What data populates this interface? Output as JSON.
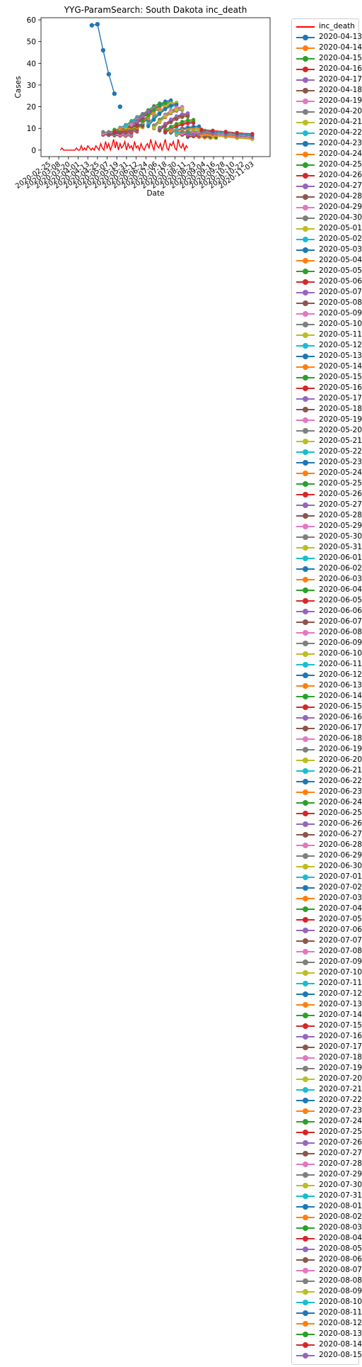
{
  "chart_data": {
    "type": "line",
    "title": "YYG-ParamSearch: South Dakota inc_death",
    "xlabel": "Date",
    "ylabel": "Cases",
    "ylim": [
      -3,
      61
    ],
    "xlim": [
      "2020-02-15",
      "2020-11-25"
    ],
    "grid": false,
    "legend_position": "outside-right",
    "yticks": [
      0,
      10,
      20,
      30,
      40,
      50,
      60
    ],
    "xticks": [
      "2020-02-25",
      "2020-03-08",
      "2020-03-20",
      "2020-04-01",
      "2020-04-13",
      "2020-04-25",
      "2020-05-07",
      "2020-05-19",
      "2020-05-31",
      "2020-06-12",
      "2020-06-24",
      "2020-07-06",
      "2020-07-18",
      "2020-07-30",
      "2020-08-11",
      "2020-08-23",
      "2020-09-04",
      "2020-09-16",
      "2020-09-28",
      "2020-10-10",
      "2020-10-22",
      "2020-11-03"
    ],
    "observed": {
      "name": "inc_death",
      "color": "#ff0000",
      "x": [
        "2020-03-10",
        "2020-03-12",
        "2020-03-14",
        "2020-03-16",
        "2020-03-18",
        "2020-03-20",
        "2020-03-22",
        "2020-03-24",
        "2020-03-26",
        "2020-03-28",
        "2020-03-30",
        "2020-04-01",
        "2020-04-03",
        "2020-04-05",
        "2020-04-07",
        "2020-04-09",
        "2020-04-11",
        "2020-04-13",
        "2020-04-15",
        "2020-04-17",
        "2020-04-19",
        "2020-04-21",
        "2020-04-23",
        "2020-04-25",
        "2020-04-27",
        "2020-04-29",
        "2020-05-01",
        "2020-05-03",
        "2020-05-05",
        "2020-05-07",
        "2020-05-09",
        "2020-05-11",
        "2020-05-13",
        "2020-05-15",
        "2020-05-17",
        "2020-05-19",
        "2020-05-21",
        "2020-05-23",
        "2020-05-25",
        "2020-05-27",
        "2020-05-29",
        "2020-05-31",
        "2020-06-02",
        "2020-06-04",
        "2020-06-06",
        "2020-06-08",
        "2020-06-10",
        "2020-06-12",
        "2020-06-14",
        "2020-06-16",
        "2020-06-18",
        "2020-06-20",
        "2020-06-22",
        "2020-06-24",
        "2020-06-26",
        "2020-06-28",
        "2020-06-30",
        "2020-07-02",
        "2020-07-04",
        "2020-07-06",
        "2020-07-08",
        "2020-07-10",
        "2020-07-12",
        "2020-07-14",
        "2020-07-16",
        "2020-07-18",
        "2020-07-20",
        "2020-07-22",
        "2020-07-24",
        "2020-07-26",
        "2020-07-28",
        "2020-07-30",
        "2020-08-01",
        "2020-08-03",
        "2020-08-05",
        "2020-08-07",
        "2020-08-09",
        "2020-08-11",
        "2020-08-13",
        "2020-08-15"
      ],
      "y": [
        0,
        1,
        0,
        0,
        0,
        0,
        0,
        0,
        0,
        0,
        1,
        0,
        0,
        2,
        0,
        1,
        0,
        2,
        1,
        0,
        1,
        0,
        2,
        1,
        0,
        3,
        1,
        0,
        4,
        1,
        3,
        0,
        2,
        5,
        1,
        4,
        0,
        3,
        1,
        2,
        4,
        0,
        3,
        1,
        2,
        0,
        4,
        1,
        2,
        0,
        3,
        1,
        0,
        2,
        3,
        1,
        5,
        2,
        0,
        4,
        2,
        1,
        3,
        0,
        2,
        5,
        1,
        0,
        3,
        2,
        4,
        1,
        0,
        5,
        2,
        1,
        3,
        0,
        2,
        1
      ]
    },
    "series_colors": [
      "#1f77b4",
      "#ff7f0e",
      "#2ca02c",
      "#d62728",
      "#9467bd",
      "#8c564b",
      "#e377c2",
      "#7f7f7f",
      "#bcbd22",
      "#17becf"
    ],
    "series_names": [
      "2020-04-13",
      "2020-04-14",
      "2020-04-15",
      "2020-04-16",
      "2020-04-17",
      "2020-04-18",
      "2020-04-19",
      "2020-04-20",
      "2020-04-21",
      "2020-04-22",
      "2020-04-23",
      "2020-04-24",
      "2020-04-25",
      "2020-04-26",
      "2020-04-27",
      "2020-04-28",
      "2020-04-29",
      "2020-04-30",
      "2020-05-01",
      "2020-05-02",
      "2020-05-03",
      "2020-05-04",
      "2020-05-05",
      "2020-05-06",
      "2020-05-07",
      "2020-05-08",
      "2020-05-09",
      "2020-05-10",
      "2020-05-11",
      "2020-05-12",
      "2020-05-13",
      "2020-05-14",
      "2020-05-15",
      "2020-05-16",
      "2020-05-17",
      "2020-05-18",
      "2020-05-19",
      "2020-05-20",
      "2020-05-21",
      "2020-05-22",
      "2020-05-23",
      "2020-05-24",
      "2020-05-25",
      "2020-05-26",
      "2020-05-27",
      "2020-05-28",
      "2020-05-29",
      "2020-05-30",
      "2020-05-31",
      "2020-06-01",
      "2020-06-02",
      "2020-06-03",
      "2020-06-04",
      "2020-06-05",
      "2020-06-06",
      "2020-06-07",
      "2020-06-08",
      "2020-06-09",
      "2020-06-10",
      "2020-06-11",
      "2020-06-12",
      "2020-06-13",
      "2020-06-14",
      "2020-06-15",
      "2020-06-16",
      "2020-06-17",
      "2020-06-18",
      "2020-06-19",
      "2020-06-20",
      "2020-06-21",
      "2020-06-22",
      "2020-06-23",
      "2020-06-24",
      "2020-06-25",
      "2020-06-26",
      "2020-06-27",
      "2020-06-28",
      "2020-06-29",
      "2020-06-30",
      "2020-07-01",
      "2020-07-02",
      "2020-07-03",
      "2020-07-04",
      "2020-07-05",
      "2020-07-06",
      "2020-07-07",
      "2020-07-08",
      "2020-07-09",
      "2020-07-10",
      "2020-07-11",
      "2020-07-12",
      "2020-07-13",
      "2020-07-14",
      "2020-07-15",
      "2020-07-16",
      "2020-07-17",
      "2020-07-18",
      "2020-07-19",
      "2020-07-20",
      "2020-07-21",
      "2020-07-22",
      "2020-07-23",
      "2020-07-24",
      "2020-07-25",
      "2020-07-26",
      "2020-07-27",
      "2020-07-28",
      "2020-07-29",
      "2020-07-30",
      "2020-07-31",
      "2020-08-01",
      "2020-08-02",
      "2020-08-03",
      "2020-08-04",
      "2020-08-05",
      "2020-08-06",
      "2020-08-07",
      "2020-08-08",
      "2020-08-09",
      "2020-08-10",
      "2020-08-11",
      "2020-08-12",
      "2020-08-13",
      "2020-08-14",
      "2020-08-15"
    ],
    "forecast_highlight": {
      "name": "2020-04-13",
      "x": [
        "2020-04-18",
        "2020-04-25",
        "2020-05-02",
        "2020-05-09",
        "2020-05-16"
      ],
      "y": [
        57.5,
        58,
        46,
        35,
        26
      ]
    },
    "forecast_extra": {
      "x": [
        "2020-05-23"
      ],
      "y": [
        20
      ]
    },
    "forecast_band": {
      "start_x": [
        "2020-05-02",
        "2020-05-09",
        "2020-05-16",
        "2020-05-23",
        "2020-05-30",
        "2020-06-06",
        "2020-06-13",
        "2020-06-20",
        "2020-06-27",
        "2020-07-04",
        "2020-07-11",
        "2020-07-18",
        "2020-07-25",
        "2020-08-01",
        "2020-08-08",
        "2020-08-15"
      ],
      "first_y": [
        7,
        7,
        8,
        9,
        10,
        11,
        12,
        12,
        11,
        10,
        9,
        8,
        8,
        7,
        7,
        6
      ],
      "peak_y": [
        8,
        10,
        12,
        15,
        18,
        20,
        22,
        23,
        22,
        20,
        17,
        14,
        11,
        9,
        8,
        7
      ],
      "tail_x": [
        "2020-09-01",
        "2020-09-15",
        "2020-10-01",
        "2020-10-15",
        "2020-11-03"
      ],
      "tail_y": [
        7,
        6.5,
        6,
        5.5,
        5
      ]
    }
  }
}
